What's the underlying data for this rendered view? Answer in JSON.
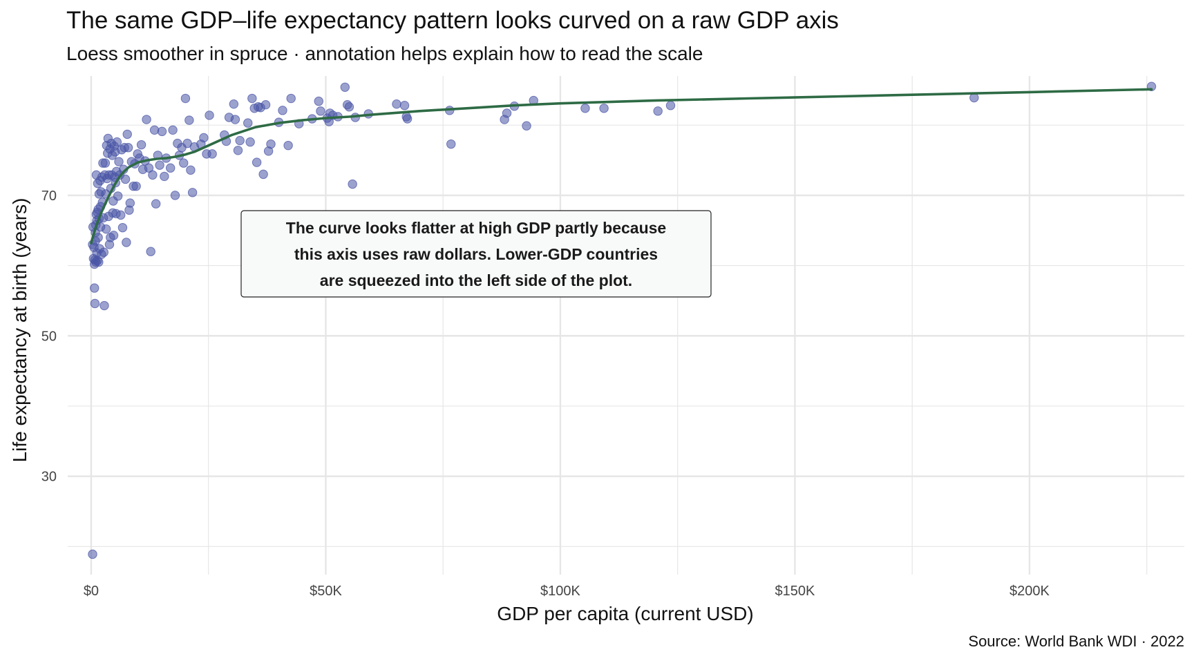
{
  "header": {
    "title": "The same GDP–life expectancy pattern looks curved on a raw GDP axis",
    "subtitle": "Loess smoother in spruce · annotation helps explain how to read the scale",
    "caption": "Source: World Bank WDI · 2022"
  },
  "colors": {
    "points": "#4a56a6",
    "smoother": "#2e6b45",
    "grid": "#e6e6e6"
  },
  "chart_data": {
    "type": "scatter",
    "title": "The same GDP–life expectancy pattern looks curved on a raw GDP axis",
    "subtitle": "Loess smoother in spruce · annotation helps explain how to read the scale",
    "xlabel": "GDP per capita (current USD)",
    "ylabel": "Life expectancy at birth (years)",
    "xlim": [
      -5000,
      233000
    ],
    "ylim": [
      16,
      87
    ],
    "x_ticks": [
      0,
      50000,
      100000,
      150000,
      200000
    ],
    "x_tick_labels": [
      "$0",
      "$50K",
      "$100K",
      "$150K",
      "$200K"
    ],
    "y_ticks": [
      30,
      50,
      70
    ],
    "y_tick_labels": [
      "30",
      "50",
      "70"
    ],
    "grid": true,
    "legend": "none",
    "annotation": {
      "lines": [
        "The curve looks flatter at high GDP partly because",
        "this axis uses raw dollars. Lower-GDP countries",
        "are squeezed into the left side of the plot."
      ],
      "x": 80000,
      "y": 65
    },
    "smoother": {
      "x": [
        0,
        1000,
        2000,
        3000,
        4000,
        5000,
        6000,
        7000,
        8000,
        10000,
        12000,
        14000,
        16000,
        18000,
        20000,
        22000,
        25000,
        30000,
        35000,
        40000,
        45000,
        50000,
        55000,
        60000,
        70000,
        80000,
        90000,
        100000,
        120000,
        140000,
        160000,
        180000,
        200000,
        226000
      ],
      "y": [
        63.2,
        65.5,
        67.3,
        68.8,
        70.2,
        71.5,
        72.6,
        73.4,
        74.0,
        74.7,
        75.0,
        75.2,
        75.3,
        75.5,
        75.8,
        76.2,
        77.1,
        78.6,
        79.7,
        80.3,
        80.7,
        81.0,
        81.2,
        81.5,
        82.0,
        82.4,
        82.8,
        83.1,
        83.5,
        83.8,
        84.1,
        84.4,
        84.7,
        85.1
      ]
    },
    "points": [
      {
        "x": 300,
        "y": 18.9
      },
      {
        "x": 300,
        "y": 63.0
      },
      {
        "x": 400,
        "y": 65.5
      },
      {
        "x": 500,
        "y": 61.0
      },
      {
        "x": 600,
        "y": 62.6
      },
      {
        "x": 700,
        "y": 60.2
      },
      {
        "x": 700,
        "y": 56.8
      },
      {
        "x": 800,
        "y": 60.8
      },
      {
        "x": 800,
        "y": 54.6
      },
      {
        "x": 900,
        "y": 63.5
      },
      {
        "x": 900,
        "y": 64.7
      },
      {
        "x": 1000,
        "y": 60.5
      },
      {
        "x": 1000,
        "y": 65.8
      },
      {
        "x": 1100,
        "y": 67.3
      },
      {
        "x": 1100,
        "y": 72.9
      },
      {
        "x": 1200,
        "y": 61.8
      },
      {
        "x": 1200,
        "y": 66.4
      },
      {
        "x": 1300,
        "y": 60.7
      },
      {
        "x": 1300,
        "y": 67.6
      },
      {
        "x": 1400,
        "y": 71.7
      },
      {
        "x": 1500,
        "y": 64.0
      },
      {
        "x": 1500,
        "y": 68.0
      },
      {
        "x": 1600,
        "y": 60.5
      },
      {
        "x": 1700,
        "y": 66.7
      },
      {
        "x": 1700,
        "y": 70.2
      },
      {
        "x": 1800,
        "y": 62.4
      },
      {
        "x": 1900,
        "y": 72.1
      },
      {
        "x": 2000,
        "y": 68.4
      },
      {
        "x": 2000,
        "y": 65.5
      },
      {
        "x": 2100,
        "y": 70.5
      },
      {
        "x": 2200,
        "y": 61.6
      },
      {
        "x": 2300,
        "y": 72.6
      },
      {
        "x": 2400,
        "y": 69.0
      },
      {
        "x": 2500,
        "y": 74.6
      },
      {
        "x": 2600,
        "y": 66.8
      },
      {
        "x": 2700,
        "y": 61.9
      },
      {
        "x": 2800,
        "y": 54.3
      },
      {
        "x": 2900,
        "y": 72.9
      },
      {
        "x": 3000,
        "y": 74.6
      },
      {
        "x": 3100,
        "y": 70.2
      },
      {
        "x": 3200,
        "y": 65.2
      },
      {
        "x": 3300,
        "y": 77.1
      },
      {
        "x": 3400,
        "y": 72.4
      },
      {
        "x": 3500,
        "y": 76.0
      },
      {
        "x": 3600,
        "y": 78.1
      },
      {
        "x": 3700,
        "y": 67.0
      },
      {
        "x": 3800,
        "y": 72.9
      },
      {
        "x": 3900,
        "y": 63.0
      },
      {
        "x": 4000,
        "y": 76.6
      },
      {
        "x": 4100,
        "y": 64.0
      },
      {
        "x": 4200,
        "y": 71.0
      },
      {
        "x": 4300,
        "y": 77.4
      },
      {
        "x": 4400,
        "y": 72.9
      },
      {
        "x": 4500,
        "y": 75.7
      },
      {
        "x": 4600,
        "y": 67.5
      },
      {
        "x": 4700,
        "y": 69.2
      },
      {
        "x": 4800,
        "y": 64.3
      },
      {
        "x": 4900,
        "y": 77.0
      },
      {
        "x": 5000,
        "y": 72.6
      },
      {
        "x": 5100,
        "y": 76.2
      },
      {
        "x": 5200,
        "y": 71.8
      },
      {
        "x": 5300,
        "y": 67.4
      },
      {
        "x": 5400,
        "y": 73.4
      },
      {
        "x": 5500,
        "y": 77.6
      },
      {
        "x": 5700,
        "y": 69.9
      },
      {
        "x": 5900,
        "y": 74.8
      },
      {
        "x": 6100,
        "y": 72.9
      },
      {
        "x": 6300,
        "y": 67.2
      },
      {
        "x": 6500,
        "y": 76.5
      },
      {
        "x": 6700,
        "y": 65.4
      },
      {
        "x": 6900,
        "y": 73.7
      },
      {
        "x": 7100,
        "y": 76.8
      },
      {
        "x": 7300,
        "y": 72.3
      },
      {
        "x": 7500,
        "y": 63.3
      },
      {
        "x": 7700,
        "y": 78.7
      },
      {
        "x": 7900,
        "y": 76.8
      },
      {
        "x": 8100,
        "y": 67.9
      },
      {
        "x": 8300,
        "y": 68.9
      },
      {
        "x": 8600,
        "y": 74.8
      },
      {
        "x": 9000,
        "y": 71.3
      },
      {
        "x": 9300,
        "y": 74.5
      },
      {
        "x": 9600,
        "y": 71.3
      },
      {
        "x": 9900,
        "y": 75.9
      },
      {
        "x": 10300,
        "y": 75.3
      },
      {
        "x": 10700,
        "y": 77.2
      },
      {
        "x": 11000,
        "y": 73.7
      },
      {
        "x": 11500,
        "y": 74.9
      },
      {
        "x": 11800,
        "y": 80.8
      },
      {
        "x": 12300,
        "y": 73.9
      },
      {
        "x": 12700,
        "y": 62.0
      },
      {
        "x": 13100,
        "y": 72.9
      },
      {
        "x": 13500,
        "y": 79.3
      },
      {
        "x": 13800,
        "y": 68.8
      },
      {
        "x": 14200,
        "y": 75.7
      },
      {
        "x": 14600,
        "y": 74.3
      },
      {
        "x": 15100,
        "y": 79.1
      },
      {
        "x": 15600,
        "y": 72.7
      },
      {
        "x": 16000,
        "y": 75.3
      },
      {
        "x": 16900,
        "y": 73.9
      },
      {
        "x": 17400,
        "y": 79.3
      },
      {
        "x": 17900,
        "y": 70.0
      },
      {
        "x": 18400,
        "y": 77.4
      },
      {
        "x": 18800,
        "y": 75.7
      },
      {
        "x": 19300,
        "y": 76.8
      },
      {
        "x": 19700,
        "y": 74.6
      },
      {
        "x": 20100,
        "y": 83.8
      },
      {
        "x": 20500,
        "y": 77.4
      },
      {
        "x": 20900,
        "y": 80.7
      },
      {
        "x": 21200,
        "y": 73.6
      },
      {
        "x": 21600,
        "y": 70.4
      },
      {
        "x": 22000,
        "y": 76.9
      },
      {
        "x": 23400,
        "y": 77.3
      },
      {
        "x": 24000,
        "y": 78.2
      },
      {
        "x": 24600,
        "y": 75.9
      },
      {
        "x": 25200,
        "y": 81.4
      },
      {
        "x": 25800,
        "y": 75.9
      },
      {
        "x": 28400,
        "y": 78.6
      },
      {
        "x": 28800,
        "y": 77.7
      },
      {
        "x": 29400,
        "y": 81.1
      },
      {
        "x": 30400,
        "y": 83.0
      },
      {
        "x": 30700,
        "y": 80.8
      },
      {
        "x": 31300,
        "y": 76.4
      },
      {
        "x": 31700,
        "y": 77.8
      },
      {
        "x": 33400,
        "y": 80.3
      },
      {
        "x": 33900,
        "y": 77.6
      },
      {
        "x": 34300,
        "y": 83.8
      },
      {
        "x": 34800,
        "y": 82.4
      },
      {
        "x": 35300,
        "y": 74.7
      },
      {
        "x": 35600,
        "y": 82.6
      },
      {
        "x": 36100,
        "y": 82.5
      },
      {
        "x": 36700,
        "y": 73.0
      },
      {
        "x": 37200,
        "y": 82.9
      },
      {
        "x": 37800,
        "y": 76.3
      },
      {
        "x": 38300,
        "y": 77.3
      },
      {
        "x": 40000,
        "y": 80.4
      },
      {
        "x": 40800,
        "y": 82.1
      },
      {
        "x": 42000,
        "y": 77.1
      },
      {
        "x": 42600,
        "y": 83.8
      },
      {
        "x": 44300,
        "y": 80.2
      },
      {
        "x": 47100,
        "y": 80.9
      },
      {
        "x": 48500,
        "y": 83.4
      },
      {
        "x": 48900,
        "y": 82.0
      },
      {
        "x": 50300,
        "y": 81.0
      },
      {
        "x": 50700,
        "y": 80.5
      },
      {
        "x": 50900,
        "y": 81.7
      },
      {
        "x": 51500,
        "y": 81.4
      },
      {
        "x": 52600,
        "y": 81.2
      },
      {
        "x": 54100,
        "y": 85.4
      },
      {
        "x": 54600,
        "y": 82.9
      },
      {
        "x": 55000,
        "y": 82.6
      },
      {
        "x": 55700,
        "y": 71.6
      },
      {
        "x": 56300,
        "y": 81.1
      },
      {
        "x": 59100,
        "y": 81.6
      },
      {
        "x": 65100,
        "y": 83.0
      },
      {
        "x": 66800,
        "y": 82.8
      },
      {
        "x": 67200,
        "y": 81.2
      },
      {
        "x": 67400,
        "y": 80.9
      },
      {
        "x": 76400,
        "y": 82.1
      },
      {
        "x": 76700,
        "y": 77.3
      },
      {
        "x": 88100,
        "y": 80.8
      },
      {
        "x": 88600,
        "y": 81.7
      },
      {
        "x": 90200,
        "y": 82.7
      },
      {
        "x": 92800,
        "y": 79.9
      },
      {
        "x": 94300,
        "y": 83.5
      },
      {
        "x": 105300,
        "y": 82.4
      },
      {
        "x": 109300,
        "y": 82.4
      },
      {
        "x": 120800,
        "y": 82.0
      },
      {
        "x": 123500,
        "y": 82.8
      },
      {
        "x": 188200,
        "y": 83.9
      },
      {
        "x": 226000,
        "y": 85.5
      }
    ]
  }
}
